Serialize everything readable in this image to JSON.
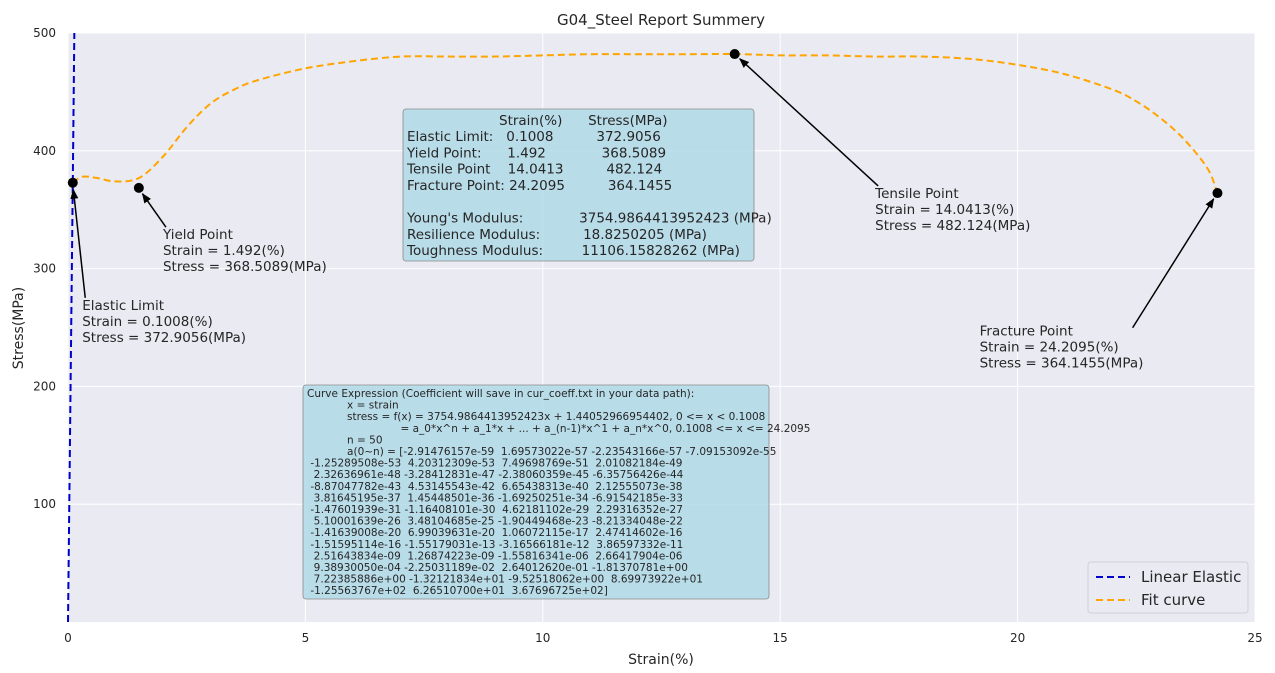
{
  "chart_data": {
    "type": "line",
    "title": "G04_Steel Report Summery",
    "xlabel": "Strain(%)",
    "ylabel": "Stress(MPa)",
    "xlim": [
      0,
      25
    ],
    "ylim": [
      0,
      500
    ],
    "xticks": [
      0,
      5,
      10,
      15,
      20,
      25
    ],
    "xtick_labels": [
      "0",
      "5",
      "10",
      "15",
      "20",
      "25"
    ],
    "yticks": [
      100,
      200,
      300,
      400,
      500
    ],
    "ytick_labels": [
      "100",
      "200",
      "300",
      "400",
      "500"
    ],
    "grid": true,
    "legend_position": "lower-right",
    "colors": {
      "background": "#eaeaf2",
      "grid": "#ffffff",
      "linear": "#0000cc",
      "fit": "#ffa500",
      "box": "#add8e6"
    },
    "series": [
      {
        "name": "Linear Elastic",
        "style": "dashed",
        "x": [
          0,
          0.1008,
          0.1332
        ],
        "y": [
          0,
          372.9056,
          500
        ]
      },
      {
        "name": "Fit curve",
        "style": "dashed",
        "x": [
          0.1008,
          0.3,
          0.6,
          1.0,
          1.5,
          2.0,
          2.5,
          3.0,
          3.5,
          4.0,
          5.0,
          6.0,
          7.0,
          8.0,
          9.0,
          10.0,
          11.0,
          12.0,
          13.0,
          14.0413,
          15.0,
          16.0,
          17.0,
          18.0,
          19.0,
          20.0,
          21.0,
          22.0,
          22.5,
          23.0,
          23.5,
          24.0,
          24.2095
        ],
        "y": [
          372.9056,
          378,
          377,
          374,
          377,
          395,
          420,
          440,
          452,
          460,
          470,
          476,
          480,
          480,
          480,
          481,
          482,
          482,
          482,
          482.124,
          481,
          481,
          480,
          480,
          478,
          473,
          465,
          452,
          442,
          428,
          410,
          385,
          364.1455
        ]
      }
    ],
    "points": [
      {
        "name": "Elastic Limit",
        "x": 0.1008,
        "y": 372.9056,
        "label": [
          "Elastic Limit",
          "Strain = 0.1008(%)",
          "Stress = 372.9056(MPa)"
        ],
        "text_pos": [
          0.3,
          265
        ]
      },
      {
        "name": "Yield Point",
        "x": 1.492,
        "y": 368.5089,
        "label": [
          "Yield Point",
          "Strain = 1.492(%)",
          "Stress = 368.5089(MPa)"
        ],
        "text_pos": [
          2.0,
          325
        ]
      },
      {
        "name": "Tensile Point",
        "x": 14.0413,
        "y": 482.124,
        "label": [
          "Tensile Point",
          "Strain = 14.0413(%)",
          "Stress = 482.124(MPa)"
        ],
        "text_pos": [
          17.0,
          360
        ]
      },
      {
        "name": "Fracture Point",
        "x": 24.2095,
        "y": 364.1455,
        "label": [
          "Fracture Point",
          "Strain = 24.2095(%)",
          "Stress = 364.1455(MPa)"
        ],
        "text_pos": [
          19.2,
          243
        ]
      }
    ],
    "summary_box": {
      "header": "Strain(%)      Stress(MPa)",
      "rows": [
        "Elastic Limit:   0.1008          372.9056",
        "Yield Point:      1.492             368.5089",
        "Tensile Point    14.0413          482.124",
        "Fracture Point: 24.2095          364.1455",
        "",
        "Young's Modulus:             3754.9864413952423 (MPa)",
        "Resilience Modulus:          18.8250205 (MPa)",
        "Toughness Modulus:         11106.15828262 (MPa)"
      ]
    },
    "expression_box": {
      "lines": [
        "Curve Expression (Coefficient will save in cur_coeff.txt in your data path):",
        "            x = strain",
        "            stress = f(x) = 3754.9864413952423x + 1.44052966954402, 0 <= x < 0.1008",
        "                            = a_0*x^n + a_1*x + ... + a_(n-1)*x^1 + a_n*x^0, 0.1008 <= x <= 24.2095",
        "            n = 50",
        "            a(0~n) = [-2.91476157e-59  1.69573022e-57 -2.23543166e-57 -7.09153092e-55",
        " -1.25289508e-53  4.20312309e-53  7.49698769e-51  2.01082184e-49",
        "  2.32636961e-48 -3.28412831e-47 -2.38060359e-45 -6.35756426e-44",
        " -8.87047782e-43  4.53145543e-42  6.65438313e-40  2.12555073e-38",
        "  3.81645195e-37  1.45448501e-36 -1.69250251e-34 -6.91542185e-33",
        " -1.47601939e-31 -1.16408101e-30  4.62181102e-29  2.29316352e-27",
        "  5.10001639e-26  3.48104685e-25 -1.90449468e-23 -8.21334048e-22",
        " -1.41639008e-20  6.99039631e-20  1.06072115e-17  2.47414602e-16",
        " -1.51595114e-16 -1.55179031e-13 -3.16566181e-12  3.86597332e-11",
        "  2.51643834e-09  1.26874223e-09 -1.55816341e-06  2.66417904e-06",
        "  9.38930050e-04 -2.25031189e-02  2.64012620e-01 -1.81370781e+00",
        "  7.22385886e+00 -1.32121834e+01 -9.52518062e+00  8.69973922e+01",
        " -1.25563767e+02  6.26510700e+01  3.67696725e+02]"
      ]
    }
  }
}
